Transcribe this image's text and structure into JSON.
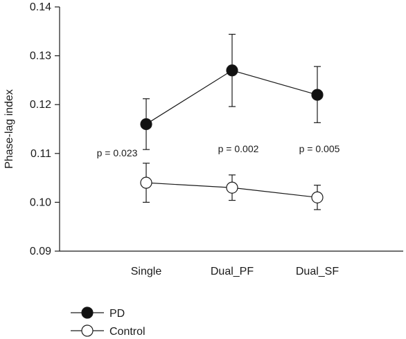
{
  "chart_data": {
    "type": "line",
    "categories": [
      "Single",
      "Dual_PF",
      "Dual_SF"
    ],
    "ylabel": "Phase-lag index",
    "xlabel": "",
    "ylim": [
      0.09,
      0.14
    ],
    "yticks": [
      0.09,
      0.1,
      0.11,
      0.12,
      0.13,
      0.14
    ],
    "ytick_labels": [
      "0.09",
      "0.10",
      "0.11",
      "0.12",
      "0.13",
      "0.14"
    ],
    "grid": false,
    "legend_position": "bottom-left",
    "series": [
      {
        "name": "PD",
        "marker": "filled-circle",
        "color": "#111111",
        "values": [
          0.116,
          0.127,
          0.122
        ],
        "error_low": [
          0.1108,
          0.1196,
          0.1163
        ],
        "error_high": [
          0.1212,
          0.1344,
          0.1278
        ]
      },
      {
        "name": "Control",
        "marker": "open-circle",
        "color": "#111111",
        "values": [
          0.104,
          0.103,
          0.101
        ],
        "error_low": [
          0.1,
          0.1004,
          0.0985
        ],
        "error_high": [
          0.108,
          0.1056,
          0.1035
        ]
      }
    ],
    "annotations": [
      "p = 0.023",
      "p = 0.002",
      "p = 0.005"
    ]
  }
}
